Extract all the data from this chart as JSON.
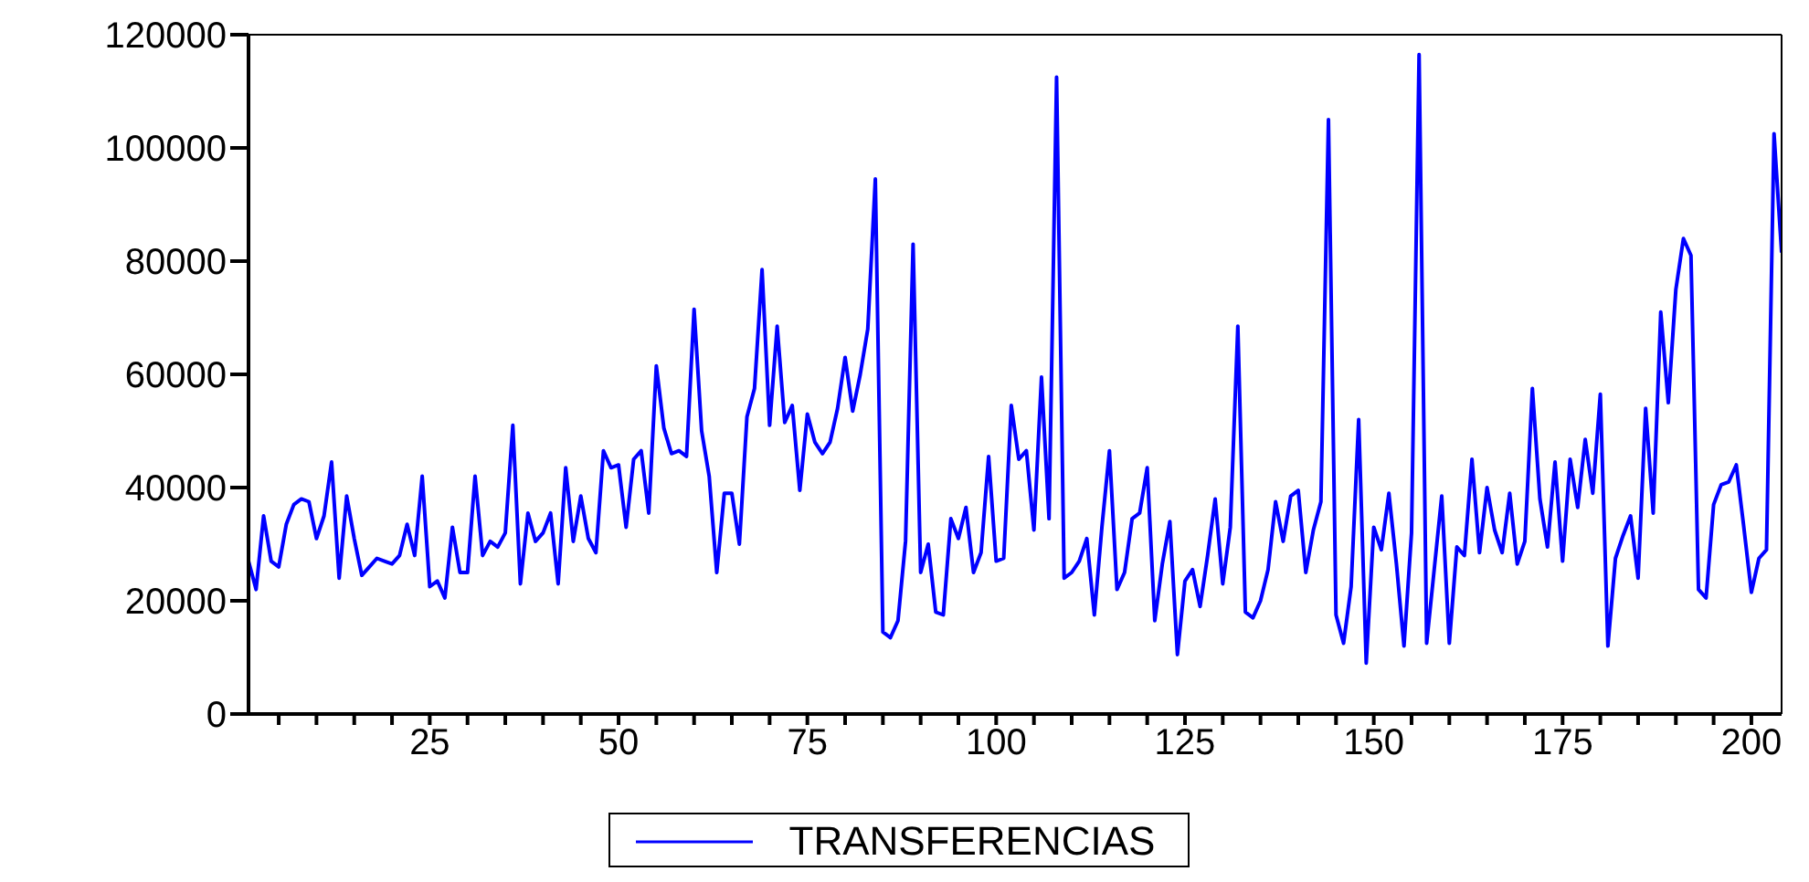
{
  "chart_data": {
    "type": "line",
    "x": [
      1,
      2,
      3,
      4,
      5,
      6,
      7,
      8,
      9,
      10,
      11,
      12,
      13,
      14,
      15,
      16,
      17,
      18,
      19,
      20,
      21,
      22,
      23,
      24,
      25,
      26,
      27,
      28,
      29,
      30,
      31,
      32,
      33,
      34,
      35,
      36,
      37,
      38,
      39,
      40,
      41,
      42,
      43,
      44,
      45,
      46,
      47,
      48,
      49,
      50,
      51,
      52,
      53,
      54,
      55,
      56,
      57,
      58,
      59,
      60,
      61,
      62,
      63,
      64,
      65,
      66,
      67,
      68,
      69,
      70,
      71,
      72,
      73,
      74,
      75,
      76,
      77,
      78,
      79,
      80,
      81,
      82,
      83,
      84,
      85,
      86,
      87,
      88,
      89,
      90,
      91,
      92,
      93,
      94,
      95,
      96,
      97,
      98,
      99,
      100,
      101,
      102,
      103,
      104,
      105,
      106,
      107,
      108,
      109,
      110,
      111,
      112,
      113,
      114,
      115,
      116,
      117,
      118,
      119,
      120,
      121,
      122,
      123,
      124,
      125,
      126,
      127,
      128,
      129,
      130,
      131,
      132,
      133,
      134,
      135,
      136,
      137,
      138,
      139,
      140,
      141,
      142,
      143,
      144,
      145,
      146,
      147,
      148,
      149,
      150,
      151,
      152,
      153,
      154,
      155,
      156,
      157,
      158,
      159,
      160,
      161,
      162,
      163,
      164,
      165,
      166,
      167,
      168,
      169,
      170,
      171,
      172,
      173,
      174,
      175,
      176,
      177,
      178,
      179,
      180,
      181,
      182,
      183,
      184,
      185,
      186,
      187,
      188,
      189,
      190,
      191,
      192,
      193,
      194,
      195,
      196,
      197,
      198,
      199,
      200,
      201,
      202,
      203,
      204
    ],
    "series": [
      {
        "name": "TRANSFERENCIAS",
        "color": "#0000ff",
        "values": [
          27000,
          22000,
          35000,
          27000,
          26000,
          33500,
          37000,
          38000,
          37500,
          31000,
          35000,
          44500,
          24000,
          38500,
          31000,
          24500,
          26000,
          27500,
          27000,
          26500,
          28000,
          33500,
          28000,
          42000,
          22500,
          23500,
          20500,
          33000,
          25000,
          25000,
          42000,
          28000,
          30500,
          29500,
          32000,
          51000,
          23000,
          35500,
          30500,
          32000,
          35500,
          23000,
          43500,
          30500,
          38500,
          31000,
          28500,
          46500,
          43500,
          44000,
          33000,
          45000,
          46500,
          35500,
          61500,
          50500,
          46000,
          46500,
          45500,
          71500,
          50000,
          42000,
          25000,
          39000,
          39000,
          30000,
          52500,
          57500,
          78500,
          51000,
          68500,
          51500,
          54500,
          39500,
          53000,
          48000,
          46000,
          48000,
          54000,
          63000,
          53500,
          60000,
          68000,
          94500,
          14500,
          13500,
          16500,
          30500,
          83000,
          25000,
          30000,
          18000,
          17500,
          34500,
          31000,
          36500,
          25000,
          28500,
          45500,
          27000,
          27500,
          54500,
          45000,
          46500,
          32500,
          59500,
          34500,
          112500,
          24000,
          25000,
          27000,
          31000,
          17500,
          33000,
          46500,
          22000,
          25000,
          34500,
          35500,
          43500,
          16500,
          26500,
          34000,
          10500,
          23500,
          25500,
          19000,
          28000,
          38000,
          23000,
          33000,
          68500,
          18000,
          17000,
          20000,
          25500,
          37500,
          30500,
          38500,
          39500,
          25000,
          32500,
          37500,
          105000,
          17500,
          12500,
          22500,
          52000,
          9000,
          33000,
          29000,
          39000,
          26500,
          12000,
          32000,
          116500,
          12500,
          25500,
          38500,
          12500,
          29500,
          28000,
          45000,
          28500,
          40000,
          32500,
          28500,
          39000,
          26500,
          30500,
          57500,
          38000,
          29500,
          44500,
          27000,
          45000,
          36500,
          48500,
          39000,
          56500,
          12000,
          27500,
          31500,
          35000,
          24000,
          54000,
          35500,
          71000,
          55000,
          75000,
          84000,
          81000,
          22000,
          20500,
          37000,
          40500,
          41000,
          44000,
          33000,
          21500,
          27500,
          29000,
          102500,
          81500
        ]
      }
    ],
    "xlim": [
      1,
      204
    ],
    "xticks": [
      {
        "value": 5,
        "label": null
      },
      {
        "value": 10,
        "label": null
      },
      {
        "value": 15,
        "label": null
      },
      {
        "value": 20,
        "label": null
      },
      25,
      {
        "value": 30,
        "label": null
      },
      {
        "value": 35,
        "label": null
      },
      {
        "value": 40,
        "label": null
      },
      {
        "value": 45,
        "label": null
      },
      50,
      {
        "value": 55,
        "label": null
      },
      {
        "value": 60,
        "label": null
      },
      {
        "value": 65,
        "label": null
      },
      {
        "value": 70,
        "label": null
      },
      75,
      {
        "value": 80,
        "label": null
      },
      {
        "value": 85,
        "label": null
      },
      {
        "value": 90,
        "label": null
      },
      {
        "value": 95,
        "label": null
      },
      100,
      {
        "value": 105,
        "label": null
      },
      {
        "value": 110,
        "label": null
      },
      {
        "value": 115,
        "label": null
      },
      {
        "value": 120,
        "label": null
      },
      125,
      {
        "value": 130,
        "label": null
      },
      {
        "value": 135,
        "label": null
      },
      {
        "value": 140,
        "label": null
      },
      {
        "value": 145,
        "label": null
      },
      150,
      {
        "value": 155,
        "label": null
      },
      {
        "value": 160,
        "label": null
      },
      {
        "value": 165,
        "label": null
      },
      {
        "value": 170,
        "label": null
      },
      175,
      {
        "value": 180,
        "label": null
      },
      {
        "value": 185,
        "label": null
      },
      {
        "value": 190,
        "label": null
      },
      {
        "value": 195,
        "label": null
      },
      200
    ],
    "ylim": [
      0,
      120000
    ],
    "yticks": [
      0,
      20000,
      40000,
      60000,
      80000,
      100000,
      120000
    ],
    "legend": "bottom",
    "grid": false,
    "marker": "none",
    "line_style": "solid"
  }
}
